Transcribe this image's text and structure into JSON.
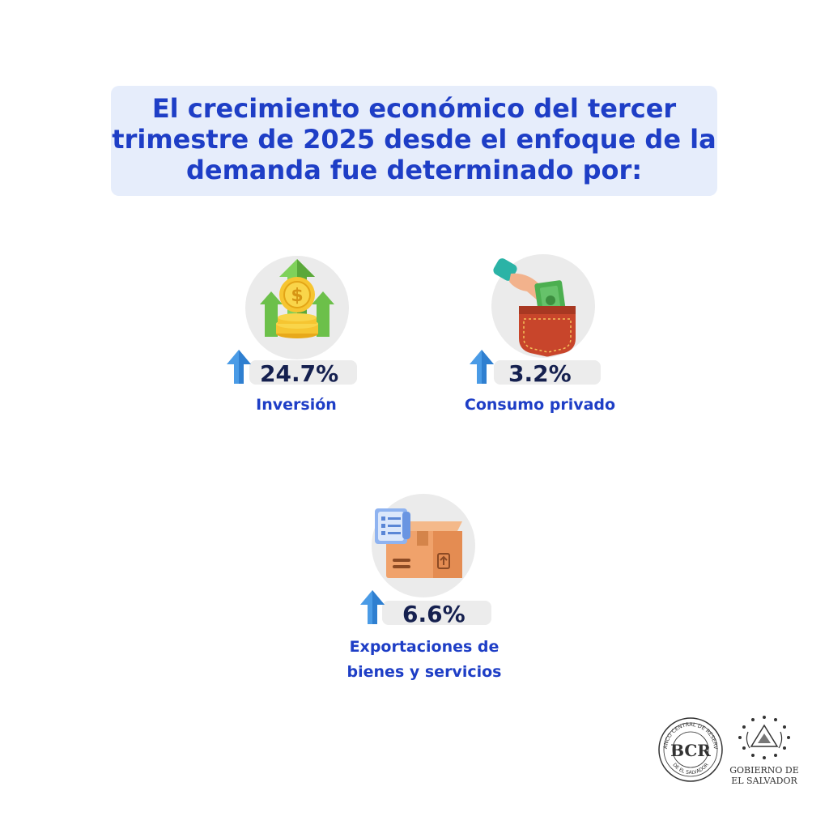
{
  "title": "El crecimiento económico del tercer trimestre de 2025 desde el enfoque de la demanda fue determinado por:",
  "colors": {
    "accent": "#1e3ec6",
    "value": "#15204f",
    "arrow": "#4a9be6",
    "title_bg": "#e6edfb"
  },
  "items": [
    {
      "value": "24.7%",
      "label": "Inversión",
      "icon": "coins-growth-icon",
      "direction": "up"
    },
    {
      "value": "3.2%",
      "label": "Consumo privado",
      "icon": "hand-money-pocket-icon",
      "direction": "up"
    },
    {
      "value": "6.6%",
      "label_line1": "Exportaciones de",
      "label_line2": "bienes y servicios",
      "icon": "package-invoice-icon",
      "direction": "up"
    }
  ],
  "logos": {
    "bcr": {
      "monogram": "BCR",
      "ring_text_top": "BANCO CENTRAL DE RESERVA",
      "ring_text_bottom": "DE EL SALVADOR"
    },
    "gobierno": {
      "line1": "GOBIERNO DE",
      "line2": "EL SALVADOR"
    }
  }
}
